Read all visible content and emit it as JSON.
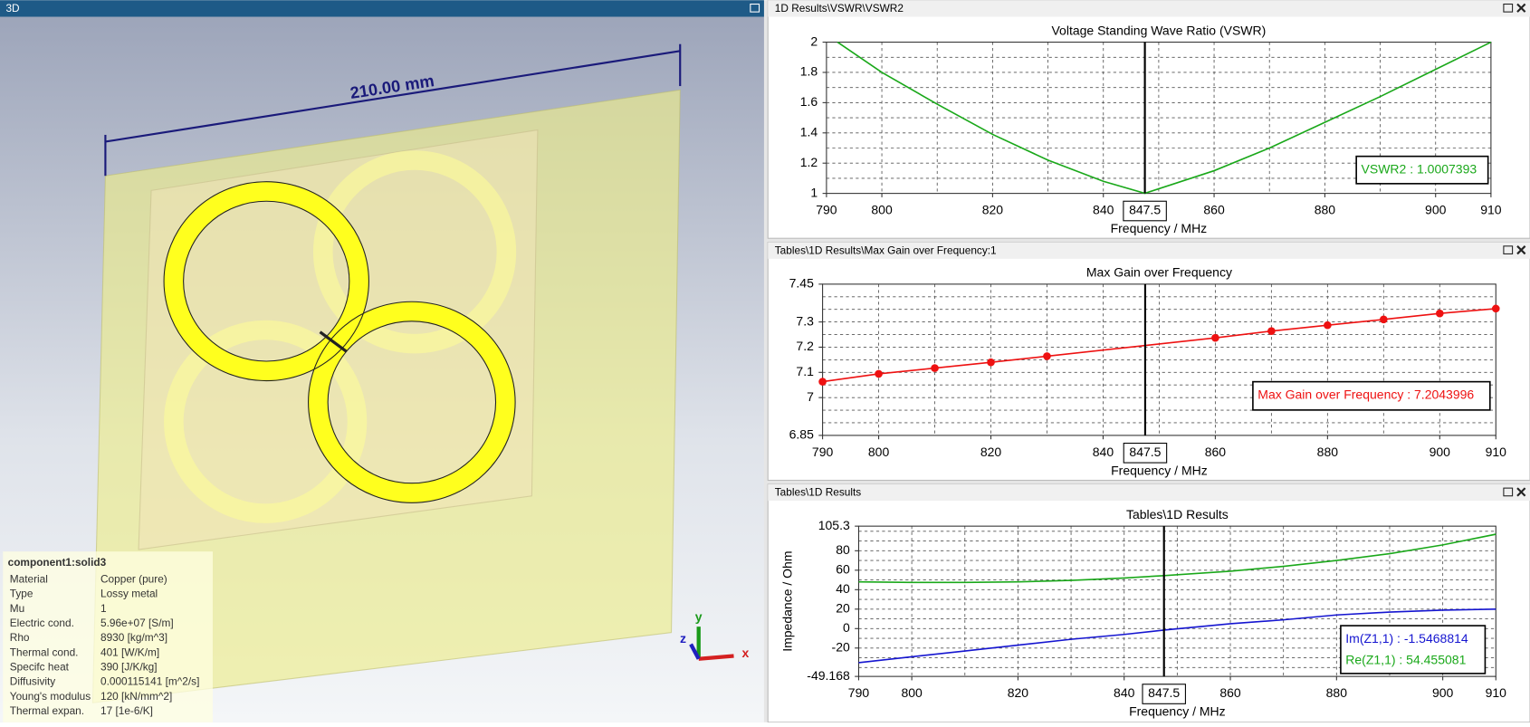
{
  "panel_3d": {
    "title": "3D",
    "dimension": "210.00 mm",
    "axes": [
      "x",
      "y",
      "z"
    ],
    "info": {
      "header": "component1:solid3",
      "rows": [
        [
          "Material",
          "Copper (pure)"
        ],
        [
          "Type",
          "Lossy metal"
        ],
        [
          "Mu",
          "1"
        ],
        [
          "Electric cond.",
          "5.96e+07 [S/m]"
        ],
        [
          "Rho",
          "8930 [kg/m^3]"
        ],
        [
          "Thermal cond.",
          "401 [W/K/m]"
        ],
        [
          "Specifc heat",
          "390 [J/K/kg]"
        ],
        [
          "Diffusivity",
          "0.000115141 [m^2/s]"
        ],
        [
          "Young's modulus",
          "120 [kN/mm^2]"
        ],
        [
          "Thermal expan.",
          "17 [1e-6/K]"
        ]
      ]
    }
  },
  "chart_data": [
    {
      "type": "line",
      "panel_title": "1D Results\\VSWR\\VSWR2",
      "title": "Voltage Standing Wave Ratio (VSWR)",
      "x_label": "Frequency / MHz",
      "xlim": [
        790,
        910
      ],
      "xticks": [
        790,
        800,
        820,
        840,
        860,
        880,
        900,
        910
      ],
      "xgrid": [
        800,
        810,
        820,
        830,
        840,
        850,
        860,
        870,
        880,
        890,
        900
      ],
      "ylim": [
        1,
        2
      ],
      "yticks": [
        1,
        1.2,
        1.4,
        1.6,
        1.8,
        2
      ],
      "ygrid": [
        1.1,
        1.2,
        1.3,
        1.4,
        1.5,
        1.6,
        1.7,
        1.8,
        1.9
      ],
      "marker_x": 847.5,
      "series": [
        {
          "name": "VSWR2 : 1.0007393",
          "color": "#1aa81a",
          "markers": false,
          "x": [
            792,
            800,
            810,
            820,
            830,
            840,
            847.5,
            860,
            870,
            880,
            890,
            900,
            910
          ],
          "values": [
            2,
            1.8,
            1.59,
            1.39,
            1.22,
            1.08,
            1.0007393,
            1.15,
            1.3,
            1.47,
            1.64,
            1.82,
            2
          ]
        }
      ]
    },
    {
      "type": "line",
      "panel_title": "Tables\\1D Results\\Max Gain over Frequency:1",
      "title": "Max Gain over Frequency",
      "x_label": "Frequency / MHz",
      "xlim": [
        790,
        910
      ],
      "xticks": [
        790,
        800,
        820,
        840,
        860,
        880,
        900,
        910
      ],
      "xgrid": [
        800,
        810,
        820,
        830,
        840,
        850,
        860,
        870,
        880,
        890,
        900
      ],
      "ylim": [
        6.85,
        7.45
      ],
      "yticks": [
        6.85,
        7,
        7.1,
        7.2,
        7.3,
        7.45
      ],
      "ygrid": [
        6.9,
        6.95,
        7,
        7.05,
        7.1,
        7.15,
        7.2,
        7.25,
        7.3,
        7.35,
        7.4
      ],
      "marker_x": 847.5,
      "series": [
        {
          "name": "Max Gain over Frequency : 7.2043996",
          "color": "#ee1111",
          "markers": true,
          "x": [
            790,
            800,
            810,
            820,
            830,
            860,
            870,
            880,
            890,
            900,
            910
          ],
          "values": [
            7.063,
            7.094,
            7.117,
            7.14,
            7.164,
            7.237,
            7.264,
            7.287,
            7.31,
            7.334,
            7.353
          ]
        }
      ]
    },
    {
      "type": "line",
      "panel_title": "Tables\\1D Results",
      "title": "Tables\\1D Results",
      "x_label": "Frequency / MHz",
      "y_label": "Impedance / Ohm",
      "xlim": [
        790,
        910
      ],
      "xticks": [
        790,
        800,
        820,
        840,
        860,
        880,
        900,
        910
      ],
      "xgrid": [
        800,
        810,
        820,
        830,
        840,
        850,
        860,
        870,
        880,
        890,
        900
      ],
      "ylim": [
        -49.168,
        105.3
      ],
      "yticks": [
        -49.168,
        -20,
        0,
        20,
        40,
        60,
        80,
        105.3
      ],
      "ygrid": [
        -40,
        -30,
        -20,
        -10,
        0,
        10,
        20,
        30,
        40,
        50,
        60,
        70,
        80,
        90,
        100
      ],
      "marker_x": 847.5,
      "series": [
        {
          "name": "Im(Z1,1) : -1.5468814",
          "color": "#1515d0",
          "markers": false,
          "x": [
            790,
            800,
            810,
            820,
            830,
            840,
            847.5,
            860,
            870,
            880,
            890,
            900,
            910
          ],
          "values": [
            -35,
            -29,
            -23,
            -17,
            -11,
            -6,
            -1.5468814,
            5,
            9,
            14,
            17,
            19,
            20
          ]
        },
        {
          "name": "Re(Z1,1) : 54.455081",
          "color": "#1aa81a",
          "markers": false,
          "x": [
            790,
            800,
            810,
            820,
            830,
            840,
            847.5,
            860,
            870,
            880,
            890,
            900,
            910
          ],
          "values": [
            48,
            47.5,
            47.5,
            48,
            49.5,
            52,
            54.455081,
            59,
            64,
            70,
            77,
            86,
            97
          ]
        }
      ]
    }
  ]
}
